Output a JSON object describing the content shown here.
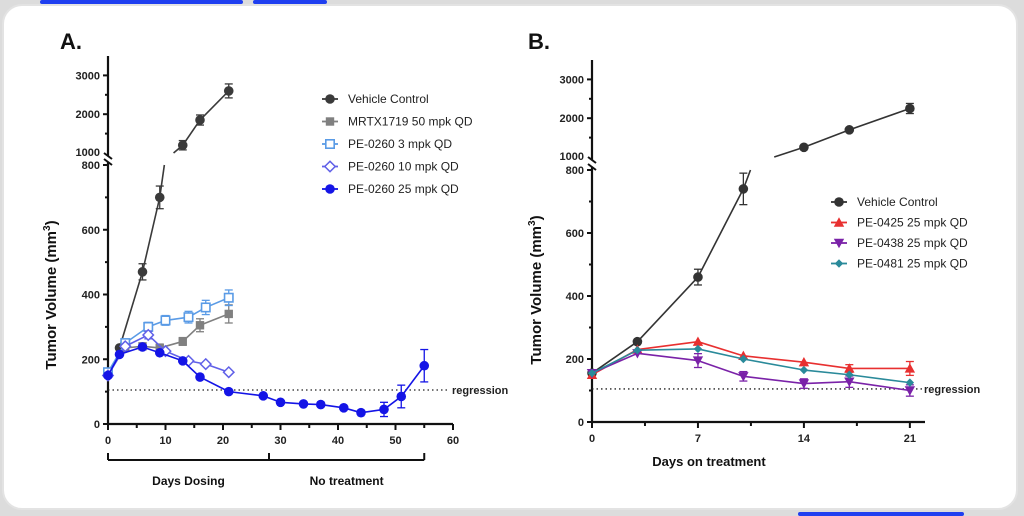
{
  "ui": {
    "scroll_top_label": "",
    "accent_color": "#1f3ff0"
  },
  "chart_data": [
    {
      "panel_label": "A.",
      "type": "line",
      "title": "",
      "xlabel": "",
      "ylabel": "Tumor Volume (mm³)",
      "ylabel_main": "Tumor Volume (mm",
      "ylabel_sup": "3",
      "ylabel_close": ")",
      "xlim": [
        0,
        60
      ],
      "xticks": [
        0,
        10,
        20,
        30,
        40,
        50,
        60
      ],
      "ylim_lower": [
        0,
        800
      ],
      "ylim_upper": [
        1000,
        3500
      ],
      "yticks_lower": [
        0,
        200,
        400,
        600,
        800
      ],
      "yticks_upper": [
        1000,
        2000,
        3000
      ],
      "axis_break": [
        800,
        1000
      ],
      "reference_line": {
        "y": 105,
        "label": "regression",
        "style": "dotted"
      },
      "brackets": [
        {
          "from": 0,
          "to": 28,
          "label": "Days Dosing"
        },
        {
          "from": 28,
          "to": 55,
          "label": "No treatment"
        }
      ],
      "legend_position": "top-right",
      "series": [
        {
          "name": "Vehicle Control",
          "color": "#3a3a3a",
          "marker": "circle-filled",
          "x": [
            2,
            6,
            9,
            13,
            16,
            21
          ],
          "y": [
            235,
            470,
            700,
            1200,
            1850,
            2600
          ],
          "err": [
            10,
            25,
            35,
            120,
            130,
            180
          ]
        },
        {
          "name": "MRTX1719 50 mpk QD",
          "color": "#808080",
          "marker": "square-filled",
          "x": [
            0,
            3,
            6,
            9,
            13,
            16,
            21
          ],
          "y": [
            155,
            235,
            240,
            235,
            255,
            305,
            340
          ],
          "err": [
            8,
            10,
            10,
            12,
            12,
            20,
            28
          ]
        },
        {
          "name": "PE-0260 3 mpk QD",
          "color": "#5a9be6",
          "marker": "square-open",
          "x": [
            0,
            3,
            7,
            10,
            14,
            17,
            21
          ],
          "y": [
            160,
            250,
            300,
            320,
            330,
            360,
            390
          ],
          "err": [
            8,
            12,
            14,
            15,
            18,
            22,
            24
          ]
        },
        {
          "name": "PE-0260 10 mpk QD",
          "color": "#6060e8",
          "marker": "diamond-open",
          "x": [
            0,
            3,
            7,
            10,
            14,
            17,
            21
          ],
          "y": [
            150,
            240,
            275,
            225,
            195,
            185,
            160
          ],
          "err": [
            8,
            10,
            12,
            10,
            8,
            8,
            6
          ]
        },
        {
          "name": "PE-0260 25 mpk QD",
          "color": "#1414e6",
          "marker": "circle-filled",
          "x": [
            0,
            2,
            6,
            9,
            13,
            16,
            21,
            27,
            30,
            34,
            37,
            41,
            44,
            48,
            51,
            55
          ],
          "y": [
            150,
            215,
            238,
            220,
            195,
            145,
            100,
            87,
            67,
            62,
            60,
            50,
            35,
            45,
            85,
            180
          ],
          "err": [
            8,
            10,
            10,
            10,
            8,
            8,
            6,
            6,
            5,
            5,
            5,
            5,
            8,
            22,
            35,
            50
          ]
        }
      ]
    },
    {
      "panel_label": "B.",
      "type": "line",
      "title": "",
      "xlabel": "Days on treatment",
      "ylabel": "Tumor Volume (mm³)",
      "ylabel_main": "Tumor Volume (mm",
      "ylabel_sup": "3",
      "ylabel_close": ")",
      "xlim": [
        0,
        22
      ],
      "xticks": [
        0,
        7,
        14,
        21
      ],
      "ylim_lower": [
        0,
        800
      ],
      "ylim_upper": [
        1000,
        3500
      ],
      "yticks_lower": [
        0,
        200,
        400,
        600,
        800
      ],
      "yticks_upper": [
        1000,
        2000,
        3000
      ],
      "axis_break": [
        800,
        1000
      ],
      "reference_line": {
        "y": 105,
        "label": "regression",
        "style": "dotted"
      },
      "legend_position": "center-right",
      "series": [
        {
          "name": "Vehicle Control",
          "color": "#333333",
          "marker": "circle-filled",
          "x": [
            0,
            3,
            7,
            10,
            14,
            17,
            21
          ],
          "y": [
            155,
            255,
            460,
            740,
            1250,
            1700,
            2250
          ],
          "err": [
            8,
            10,
            25,
            50,
            40,
            50,
            130
          ]
        },
        {
          "name": "PE-0425 25 mpk QD",
          "color": "#e83030",
          "marker": "triangle-up",
          "x": [
            0,
            3,
            7,
            10,
            14,
            17,
            21
          ],
          "y": [
            150,
            230,
            255,
            210,
            190,
            170,
            170
          ],
          "err": [
            8,
            10,
            10,
            10,
            10,
            12,
            22
          ]
        },
        {
          "name": "PE-0438 25 mpk QD",
          "color": "#7a22a8",
          "marker": "triangle-down",
          "x": [
            0,
            3,
            7,
            10,
            14,
            17,
            21
          ],
          "y": [
            155,
            218,
            195,
            145,
            122,
            128,
            100
          ],
          "err": [
            8,
            10,
            22,
            15,
            15,
            18,
            18
          ]
        },
        {
          "name": "PE-0481 25 mpk QD",
          "color": "#2a8a9a",
          "marker": "diamond-filled",
          "x": [
            0,
            3,
            7,
            10,
            14,
            17,
            21
          ],
          "y": [
            155,
            228,
            232,
            200,
            165,
            150,
            125
          ],
          "err": [
            8,
            10,
            10,
            10,
            8,
            10,
            10
          ]
        }
      ]
    }
  ]
}
